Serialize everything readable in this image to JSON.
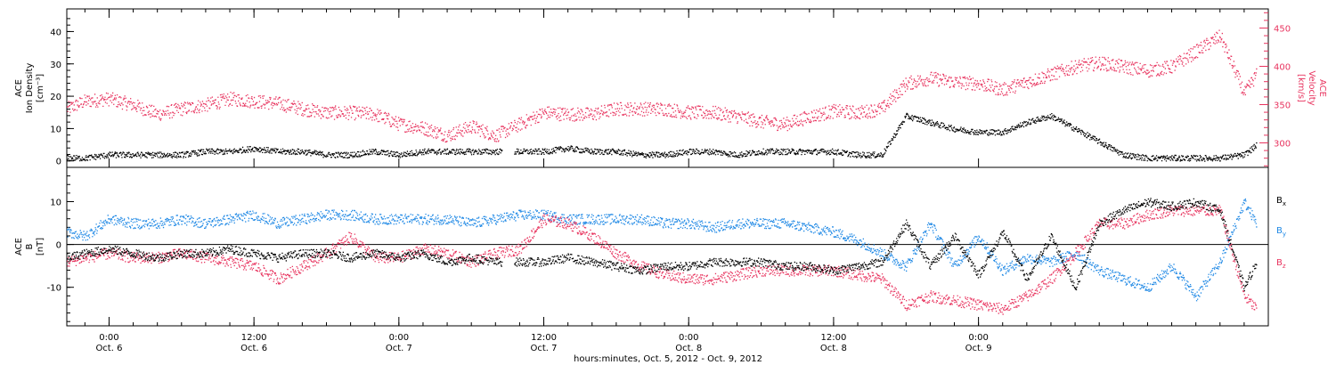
{
  "colors": {
    "black": "#000000",
    "pink": "#e8345f",
    "blue": "#1e88e5",
    "background": "#ffffff"
  },
  "chart_data": [
    {
      "type": "scatter",
      "panel": "plasma",
      "left_axis_label": [
        "ACE",
        "Ion Density",
        "[cm⁻³]"
      ],
      "right_axis_label": [
        "ACE",
        "Velocity",
        "[km/s]"
      ],
      "x_range_hours": [
        -3.5,
        96
      ],
      "y_range_left": [
        -2,
        47
      ],
      "y_range_right": [
        268,
        475
      ],
      "y_ticks_left": [
        0,
        10,
        20,
        30,
        40
      ],
      "y_ticks_right": [
        300,
        350,
        400,
        450
      ],
      "series": [
        {
          "axis": "left",
          "color": "black",
          "x": [
            -3.5,
            -2,
            0,
            2,
            4,
            6,
            8,
            10,
            12,
            14,
            16,
            18,
            20,
            22,
            24,
            26,
            28,
            30,
            32,
            34,
            36,
            38,
            40,
            42,
            44,
            46,
            48,
            50,
            52,
            54,
            56,
            58,
            60,
            62,
            64,
            66,
            68,
            70,
            72,
            74,
            76,
            78,
            80,
            82,
            84,
            86,
            88,
            90,
            92,
            94,
            95
          ],
          "y": [
            1,
            1,
            2,
            2,
            2,
            2,
            3,
            3,
            4,
            3,
            3,
            2,
            2,
            3,
            2,
            3,
            3,
            3,
            3,
            3,
            3,
            4,
            3,
            3,
            2,
            2,
            3,
            3,
            2,
            3,
            3,
            3,
            3,
            2,
            2,
            14,
            12,
            10,
            9,
            9,
            12,
            14,
            10,
            6,
            2,
            1,
            1,
            1,
            1,
            2,
            5
          ]
        },
        {
          "axis": "right",
          "color": "pink",
          "x": [
            -3.5,
            -2,
            0,
            2,
            4,
            6,
            8,
            10,
            12,
            14,
            16,
            18,
            20,
            22,
            24,
            26,
            28,
            30,
            32,
            34,
            36,
            38,
            40,
            42,
            44,
            46,
            48,
            50,
            52,
            54,
            56,
            58,
            60,
            62,
            64,
            66,
            68,
            70,
            72,
            74,
            76,
            78,
            80,
            82,
            84,
            86,
            88,
            90,
            92,
            94,
            95
          ],
          "y": [
            345,
            355,
            358,
            350,
            338,
            345,
            350,
            358,
            355,
            352,
            345,
            340,
            340,
            338,
            325,
            320,
            310,
            322,
            310,
            325,
            340,
            338,
            338,
            345,
            345,
            345,
            340,
            340,
            335,
            328,
            325,
            335,
            342,
            340,
            345,
            378,
            385,
            380,
            378,
            370,
            380,
            390,
            400,
            405,
            400,
            395,
            400,
            420,
            440,
            365,
            390
          ]
        }
      ]
    },
    {
      "type": "scatter",
      "panel": "magnetic-field",
      "left_axis_label": [
        "ACE",
        "B",
        "[nT]"
      ],
      "x_range_hours": [
        -3.5,
        96
      ],
      "y_range": [
        -19,
        18
      ],
      "y_ticks": [
        10,
        0,
        -10
      ],
      "legend": [
        "Bx",
        "By",
        "Bz"
      ],
      "x_tick_labels": [
        {
          "time": "0:00",
          "date": "Oct. 6"
        },
        {
          "time": "12:00",
          "date": "Oct. 6"
        },
        {
          "time": "0:00",
          "date": "Oct. 7"
        },
        {
          "time": "12:00",
          "date": "Oct. 7"
        },
        {
          "time": "0:00",
          "date": "Oct. 8"
        },
        {
          "time": "12:00",
          "date": "Oct. 8"
        },
        {
          "time": "0:00",
          "date": "Oct. 9"
        }
      ],
      "x_ticks_hours": [
        0,
        12,
        24,
        36,
        48,
        60,
        72
      ],
      "x_axis_label": "hours:minutes, Oct.  5, 2012 - Oct.  9, 2012",
      "series": [
        {
          "name": "Bx",
          "color": "black",
          "x": [
            -3.5,
            -2,
            0,
            2,
            4,
            6,
            8,
            10,
            12,
            14,
            16,
            18,
            20,
            22,
            24,
            26,
            28,
            30,
            32,
            34,
            36,
            38,
            40,
            42,
            44,
            46,
            48,
            50,
            52,
            54,
            56,
            58,
            60,
            62,
            64,
            66,
            68,
            70,
            72,
            74,
            76,
            78,
            80,
            82,
            84,
            86,
            88,
            90,
            92,
            94,
            95
          ],
          "y": [
            -3,
            -2,
            -1,
            -2,
            -3,
            -2,
            -2,
            -1,
            -2,
            -3,
            -2,
            -2,
            -3,
            -2,
            -3,
            -2,
            -4,
            -3,
            -4,
            -4,
            -4,
            -3,
            -4,
            -5,
            -6,
            -5,
            -5,
            -4,
            -4,
            -4,
            -5,
            -5,
            -6,
            -5,
            -4,
            5,
            -5,
            2,
            -7,
            3,
            -8,
            2,
            -10,
            5,
            8,
            10,
            9,
            10,
            8,
            -10,
            -4
          ]
        },
        {
          "name": "By",
          "color": "blue",
          "x": [
            -3.5,
            -2,
            0,
            2,
            4,
            6,
            8,
            10,
            12,
            14,
            16,
            18,
            20,
            22,
            24,
            26,
            28,
            30,
            32,
            34,
            36,
            38,
            40,
            42,
            44,
            46,
            48,
            50,
            52,
            54,
            56,
            58,
            60,
            62,
            64,
            66,
            68,
            70,
            72,
            74,
            76,
            78,
            80,
            82,
            84,
            86,
            88,
            90,
            92,
            94,
            95
          ],
          "y": [
            3,
            2,
            6,
            5,
            5,
            6,
            5,
            6,
            7,
            5,
            6,
            7,
            7,
            6,
            6,
            6,
            6,
            5,
            6,
            7,
            7,
            6,
            6,
            6,
            6,
            5,
            5,
            4,
            5,
            5,
            5,
            4,
            3,
            1,
            -2,
            -5,
            5,
            -5,
            2,
            -6,
            -3,
            -4,
            -2,
            -6,
            -8,
            -10,
            -5,
            -12,
            -4,
            10,
            5
          ]
        },
        {
          "name": "Bz",
          "color": "pink",
          "x": [
            -3.5,
            -2,
            0,
            2,
            4,
            6,
            8,
            10,
            12,
            14,
            16,
            18,
            20,
            22,
            24,
            26,
            28,
            30,
            32,
            34,
            36,
            38,
            40,
            42,
            44,
            46,
            48,
            50,
            52,
            54,
            56,
            58,
            60,
            62,
            64,
            66,
            68,
            70,
            72,
            74,
            76,
            78,
            80,
            82,
            84,
            86,
            88,
            90,
            92,
            94,
            95
          ],
          "y": [
            -4,
            -3,
            -2,
            -3,
            -3,
            -2,
            -3,
            -4,
            -5,
            -8,
            -5,
            -2,
            2,
            -3,
            -3,
            -1,
            -2,
            -4,
            -2,
            -1,
            6,
            5,
            2,
            -2,
            -5,
            -7,
            -8,
            -8,
            -7,
            -6,
            -6,
            -6,
            -6,
            -7,
            -8,
            -14,
            -12,
            -13,
            -14,
            -15,
            -12,
            -8,
            -2,
            5,
            5,
            7,
            8,
            8,
            8,
            -12,
            -15
          ]
        }
      ]
    }
  ]
}
